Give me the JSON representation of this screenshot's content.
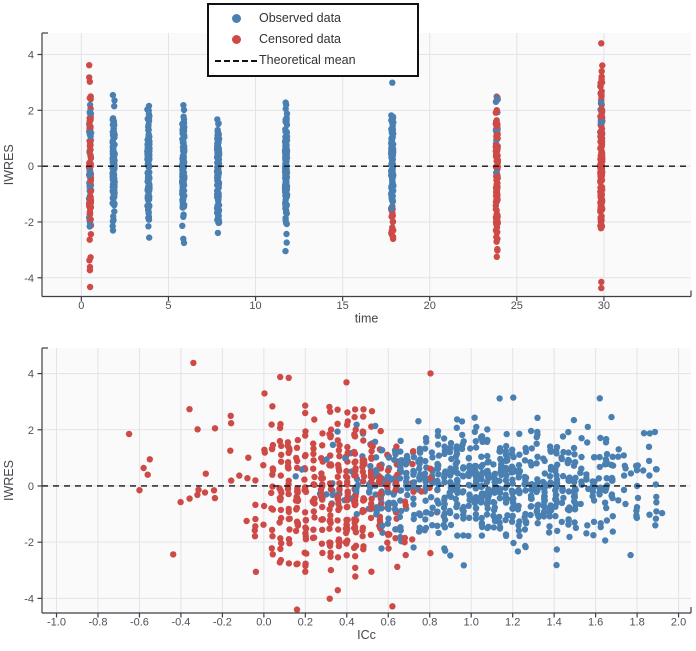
{
  "seed": 20240521,
  "colors": {
    "observed": "#4a80b1",
    "censored": "#ce4a46",
    "theoretical_mean": "#111111",
    "grid": "#e3e3e8",
    "axis": "#3f3f44",
    "tick_text": "#4f4f58",
    "axis_title_text": "#45454c",
    "plot_bg": "#fafafb",
    "legend_border": "#111111",
    "legend_bg": "#ffffff"
  },
  "legend": {
    "items": [
      {
        "key": "observed",
        "label": "Observed data",
        "marker": "dot"
      },
      {
        "key": "censored",
        "label": "Censored data",
        "marker": "dot"
      },
      {
        "key": "theoretical_mean",
        "label": "Theoretical mean",
        "marker": "dashed-line"
      }
    ]
  },
  "chart_data": [
    {
      "type": "scatter",
      "title": "",
      "xlabel": "time",
      "ylabel": "IWRES",
      "xlim": [
        -2.26,
        35.0
      ],
      "ylim": [
        -4.67,
        4.77
      ],
      "grid": true,
      "legend_position": "top-center",
      "theoretical_mean_y": 0,
      "x_ticks": [
        {
          "v": 0,
          "label": "0"
        },
        {
          "v": 5,
          "label": "5"
        },
        {
          "v": 10,
          "label": "10"
        },
        {
          "v": 15,
          "label": "15"
        },
        {
          "v": 20,
          "label": "20"
        },
        {
          "v": 25,
          "label": "25"
        },
        {
          "v": 30,
          "label": "30"
        }
      ],
      "y_ticks": [
        {
          "v": -4,
          "label": "-4"
        },
        {
          "v": -2,
          "label": "-2"
        },
        {
          "v": 0,
          "label": "0"
        },
        {
          "v": 2,
          "label": "2"
        },
        {
          "v": 4,
          "label": "4"
        }
      ],
      "clusters": [
        {
          "series": "censored",
          "x": 0.5,
          "x_jitter": 0.06,
          "y_mean": -0.2,
          "y_sd": 1.85,
          "y_min": -4.05,
          "y_max": 3.62,
          "count": 85
        },
        {
          "series": "observed",
          "x": 0.5,
          "x_jitter": 0.06,
          "y_mean": 0.0,
          "y_sd": 1.3,
          "y_min": -2.7,
          "y_max": 2.7,
          "count": 40
        },
        {
          "series": "observed",
          "x": 1.85,
          "x_jitter": 0.06,
          "y_mean": 0.0,
          "y_sd": 1.05,
          "y_min": -3.0,
          "y_max": 2.55,
          "count": 130
        },
        {
          "series": "observed",
          "x": 3.85,
          "x_jitter": 0.06,
          "y_mean": -0.05,
          "y_sd": 1.0,
          "y_min": -2.95,
          "y_max": 2.2,
          "count": 120
        },
        {
          "series": "observed",
          "x": 5.85,
          "x_jitter": 0.06,
          "y_mean": 0.0,
          "y_sd": 1.0,
          "y_min": -2.8,
          "y_max": 2.45,
          "count": 120
        },
        {
          "series": "observed",
          "x": 7.85,
          "x_jitter": 0.06,
          "y_mean": -0.05,
          "y_sd": 0.95,
          "y_min": -2.7,
          "y_max": 2.15,
          "count": 115
        },
        {
          "series": "observed",
          "x": 11.75,
          "x_jitter": 0.06,
          "y_mean": 0.0,
          "y_sd": 1.1,
          "y_min": -3.15,
          "y_max": 2.5,
          "count": 130
        },
        {
          "series": "observed",
          "x": 17.85,
          "x_jitter": 0.06,
          "y_mean": 0.2,
          "y_sd": 1.0,
          "y_min": -2.1,
          "y_max": 2.4,
          "count": 110
        },
        {
          "series": "censored",
          "x": 17.85,
          "x_jitter": 0.06,
          "y_mean": -1.9,
          "y_sd": 0.55,
          "y_min": -2.75,
          "y_max": -1.0,
          "count": 18
        },
        {
          "series": "censored",
          "x": 23.85,
          "x_jitter": 0.06,
          "y_mean": -0.4,
          "y_sd": 1.4,
          "y_min": -3.9,
          "y_max": 2.65,
          "count": 115
        },
        {
          "series": "observed",
          "x": 23.85,
          "x_jitter": 0.06,
          "y_mean": 1.2,
          "y_sd": 1.1,
          "y_min": -1.6,
          "y_max": 2.65,
          "count": 16
        },
        {
          "series": "censored",
          "x": 29.85,
          "x_jitter": 0.06,
          "y_mean": 0.0,
          "y_sd": 1.55,
          "y_min": -4.2,
          "y_max": 3.75,
          "count": 145
        },
        {
          "series": "observed",
          "x": 29.85,
          "x_jitter": 0.06,
          "y_mean": 1.9,
          "y_sd": 0.8,
          "y_min": 0.65,
          "y_max": 3.15,
          "count": 14
        }
      ],
      "outlier_points": [
        {
          "series": "censored",
          "x": 0.5,
          "y": -4.33
        },
        {
          "series": "observed",
          "x": 17.85,
          "y": 2.99
        },
        {
          "series": "censored",
          "x": 29.85,
          "y": 4.4
        },
        {
          "series": "censored",
          "x": 29.85,
          "y": -4.37
        },
        {
          "series": "censored",
          "x": 29.85,
          "y": -4.15
        }
      ]
    },
    {
      "type": "scatter",
      "title": "",
      "xlabel": "ICc",
      "ylabel": "IWRES",
      "xlim": [
        -1.07,
        2.06
      ],
      "ylim": [
        -4.52,
        4.91
      ],
      "grid": true,
      "theoretical_mean_y": 0,
      "x_ticks": [
        {
          "v": -1.0,
          "label": "-1.0"
        },
        {
          "v": -0.8,
          "label": "-0.8"
        },
        {
          "v": -0.6,
          "label": "-0.6"
        },
        {
          "v": -0.4,
          "label": "-0.4"
        },
        {
          "v": -0.2,
          "label": "-0.2"
        },
        {
          "v": 0.0,
          "label": "0.0"
        },
        {
          "v": 0.2,
          "label": "0.2"
        },
        {
          "v": 0.4,
          "label": "0.4"
        },
        {
          "v": 0.6,
          "label": "0.6"
        },
        {
          "v": 0.8,
          "label": "0.8"
        },
        {
          "v": 1.0,
          "label": "1.0"
        },
        {
          "v": 1.2,
          "label": "1.2"
        },
        {
          "v": 1.4,
          "label": "1.4"
        },
        {
          "v": 1.6,
          "label": "1.6"
        },
        {
          "v": 1.8,
          "label": "1.8"
        },
        {
          "v": 2.0,
          "label": "2.0"
        }
      ],
      "y_ticks": [
        {
          "v": -4,
          "label": "-4"
        },
        {
          "v": -2,
          "label": "-2"
        },
        {
          "v": 0,
          "label": "0"
        },
        {
          "v": 2,
          "label": "2"
        },
        {
          "v": 4,
          "label": "4"
        }
      ],
      "clusters": [
        {
          "series": "censored",
          "x_mean": 0.38,
          "x_sd": 0.17,
          "x_min": 0.0,
          "x_max": 0.88,
          "x_quant": 0.04,
          "y_mean": -0.2,
          "y_sd": 1.25,
          "y_min": -3.55,
          "y_max": 3.3,
          "count": 300
        },
        {
          "series": "censored",
          "x_mean": 0.18,
          "x_sd": 0.3,
          "x_min": -0.7,
          "x_max": 0.88,
          "x_quant": 0.04,
          "y_mean": -0.1,
          "y_sd": 1.6,
          "y_min": -4.1,
          "y_max": 4.15,
          "count": 130
        },
        {
          "series": "observed",
          "x_mean": 1.2,
          "x_sd": 0.36,
          "x_min": 0.34,
          "x_max": 1.92,
          "x_quant": 0.03,
          "y_mean": 0.05,
          "y_sd": 1.0,
          "y_min": -2.95,
          "y_max": 3.2,
          "count": 620
        },
        {
          "series": "observed",
          "x_mean": 0.72,
          "x_sd": 0.24,
          "x_min": 0.15,
          "x_max": 1.2,
          "x_quant": 0.03,
          "y_mean": 0.1,
          "y_sd": 1.1,
          "y_min": -2.8,
          "y_max": 3.2,
          "count": 150
        }
      ],
      "outlier_points": [
        {
          "series": "censored",
          "x": -0.34,
          "y": 4.38
        },
        {
          "series": "censored",
          "x": 0.12,
          "y": 3.85
        },
        {
          "series": "censored",
          "x": 0.16,
          "y": -4.4
        },
        {
          "series": "censored",
          "x": 0.62,
          "y": -4.28
        },
        {
          "series": "observed",
          "x": 1.62,
          "y": 3.12
        },
        {
          "series": "censored",
          "x": -0.65,
          "y": 1.85
        },
        {
          "series": "censored",
          "x": -0.55,
          "y": 0.95
        },
        {
          "series": "censored",
          "x": -0.56,
          "y": 0.4
        },
        {
          "series": "censored",
          "x": -0.6,
          "y": -0.15
        },
        {
          "series": "censored",
          "x": -0.58,
          "y": 0.64
        }
      ]
    }
  ]
}
